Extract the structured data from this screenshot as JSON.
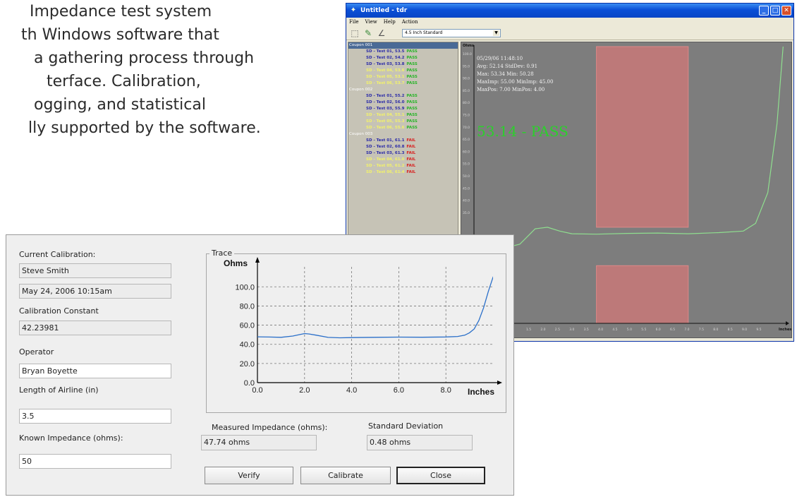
{
  "promo": {
    "lines": [
      "Impedance test system",
      "th Windows software that",
      "a gathering process through",
      "terface.  Calibration,",
      "ogging, and statistical",
      "lly supported by the software."
    ]
  },
  "tdr": {
    "title": "Untitled - tdr",
    "menu": [
      "File",
      "View",
      "Help",
      "Action"
    ],
    "profile": "4.5 Inch Standard",
    "tree": [
      {
        "coupon": "Coupon 001",
        "tests": [
          {
            "name": "SD - Test 01, 53.5",
            "result": "PASS",
            "hl": false
          },
          {
            "name": "SD - Test 02, 54.2",
            "result": "PASS",
            "hl": false
          },
          {
            "name": "SD - Test 03, 53.8",
            "result": "PASS",
            "hl": false
          },
          {
            "name": "SD - Test 04, 53.6",
            "result": "PASS",
            "hl": true
          },
          {
            "name": "SD - Test 05, 53.1",
            "result": "PASS",
            "hl": true
          },
          {
            "name": "SD - Test 06, 53.7",
            "result": "PASS",
            "hl": true
          }
        ]
      },
      {
        "coupon": "Coupon 002",
        "tests": [
          {
            "name": "SD - Test 01, 55.2",
            "result": "PASS",
            "hl": false
          },
          {
            "name": "SD - Test 02, 56.0",
            "result": "PASS",
            "hl": false
          },
          {
            "name": "SD - Test 03, 55.9",
            "result": "PASS",
            "hl": false
          },
          {
            "name": "SD - Test 04, 55.1",
            "result": "PASS",
            "hl": true
          },
          {
            "name": "SD - Test 05, 55.3",
            "result": "PASS",
            "hl": true
          },
          {
            "name": "SD - Test 06, 55.6",
            "result": "PASS",
            "hl": true
          }
        ]
      },
      {
        "coupon": "Coupon 003",
        "tests": [
          {
            "name": "SD - Test 01, 61.1",
            "result": "FAIL",
            "hl": false
          },
          {
            "name": "SD - Test 02, 60.8",
            "result": "FAIL",
            "hl": false
          },
          {
            "name": "SD - Test 03, 61.3",
            "result": "FAIL",
            "hl": false
          },
          {
            "name": "SD - Test 04, 61.0",
            "result": "FAIL",
            "hl": true
          },
          {
            "name": "SD - Test 05, 61.2",
            "result": "FAIL",
            "hl": true
          },
          {
            "name": "SD - Test 06, 61.4",
            "result": "FAIL",
            "hl": true
          }
        ]
      }
    ],
    "stats": [
      "05/29/06 11:48:10",
      "Avg: 52.14  StdDev: 0.91",
      "Max: 53.34  Min: 50.28",
      "MaxImp: 55.00  MinImp: 45.00",
      "MaxPos: 7.00  MinPos: 4.00"
    ],
    "result": "53.14 - PASS",
    "plot": {
      "ylabel": "Ohms",
      "xlabel": "Inches",
      "yticks": [
        "100.0",
        "95.0",
        "90.0",
        "85.0",
        "80.0",
        "75.0",
        "70.0",
        "65.0",
        "60.0",
        "55.0",
        "50.0",
        "45.0",
        "40.0",
        "35.0"
      ],
      "xticks": [
        "1.5",
        "2.0",
        "2.5",
        "3.0",
        "3.5",
        "4.0",
        "4.5",
        "5.0",
        "5.5",
        "6.0",
        "6.5",
        "7.0",
        "7.5",
        "8.0",
        "8.5",
        "9.0",
        "9.5"
      ],
      "ylim": [
        30,
        102
      ],
      "xlim": [
        0,
        10
      ],
      "pos_band": [
        4.0,
        7.0
      ],
      "band_gap": [
        45.0,
        55.0
      ],
      "trace_color": "#8fdf8f",
      "band_color": "#c87878",
      "curve": [
        [
          0,
          49.5
        ],
        [
          0.5,
          49.2
        ],
        [
          1.0,
          49.6
        ],
        [
          1.5,
          50.6
        ],
        [
          2.0,
          54.6
        ],
        [
          2.4,
          55.0
        ],
        [
          2.8,
          54.0
        ],
        [
          3.2,
          53.3
        ],
        [
          4,
          53.2
        ],
        [
          5,
          53.4
        ],
        [
          6,
          53.5
        ],
        [
          7,
          53.3
        ],
        [
          8,
          53.6
        ],
        [
          8.8,
          54.0
        ],
        [
          9.2,
          56
        ],
        [
          9.6,
          64
        ],
        [
          9.9,
          82
        ],
        [
          10.1,
          102
        ]
      ]
    }
  },
  "calib": {
    "current_calibration_label": "Current Calibration:",
    "calibrated_by": "Steve Smith",
    "calibration_date": "May 24, 2006  10:15am",
    "constant_label": "Calibration Constant",
    "constant_value": "42.23981",
    "operator_label": "Operator",
    "operator_value": "Bryan Boyette",
    "length_label": "Length of Airline (in)",
    "length_value": "3.5",
    "known_label": "Known Impedance (ohms):",
    "known_value": "50",
    "trace_legend": "Trace",
    "measured_label": "Measured Impedance (ohms):",
    "measured_value": "47.74 ohms",
    "stddev_label": "Standard Deviation",
    "stddev_value": "0.48 ohms",
    "buttons": {
      "verify": "Verify",
      "calibrate": "Calibrate",
      "close": "Close"
    }
  },
  "chart_data": {
    "type": "line",
    "title": "Trace",
    "xlabel": "Inches",
    "ylabel": "Ohms",
    "xticks": [
      "0.0",
      "2.0",
      "4.0",
      "6.0",
      "8.0"
    ],
    "yticks": [
      "0.0",
      "20.0",
      "40.0",
      "60.0",
      "80.0",
      "100.0"
    ],
    "xlim": [
      0,
      10
    ],
    "ylim": [
      0,
      112
    ],
    "grid": true,
    "line_color": "#2a6fc9",
    "x": [
      0.0,
      0.5,
      1.0,
      1.5,
      1.8,
      2.0,
      2.2,
      2.5,
      3.0,
      3.5,
      4.0,
      5.0,
      6.0,
      7.0,
      8.0,
      8.5,
      8.8,
      9.0,
      9.2,
      9.4,
      9.6,
      9.8,
      10.0,
      10.2
    ],
    "values": [
      47.8,
      47.6,
      47.3,
      48.6,
      50.2,
      51.2,
      50.8,
      49.5,
      47.2,
      46.8,
      47.0,
      47.3,
      47.5,
      47.4,
      47.7,
      48.2,
      49.5,
      52,
      56,
      65,
      78,
      95,
      110,
      120
    ]
  }
}
